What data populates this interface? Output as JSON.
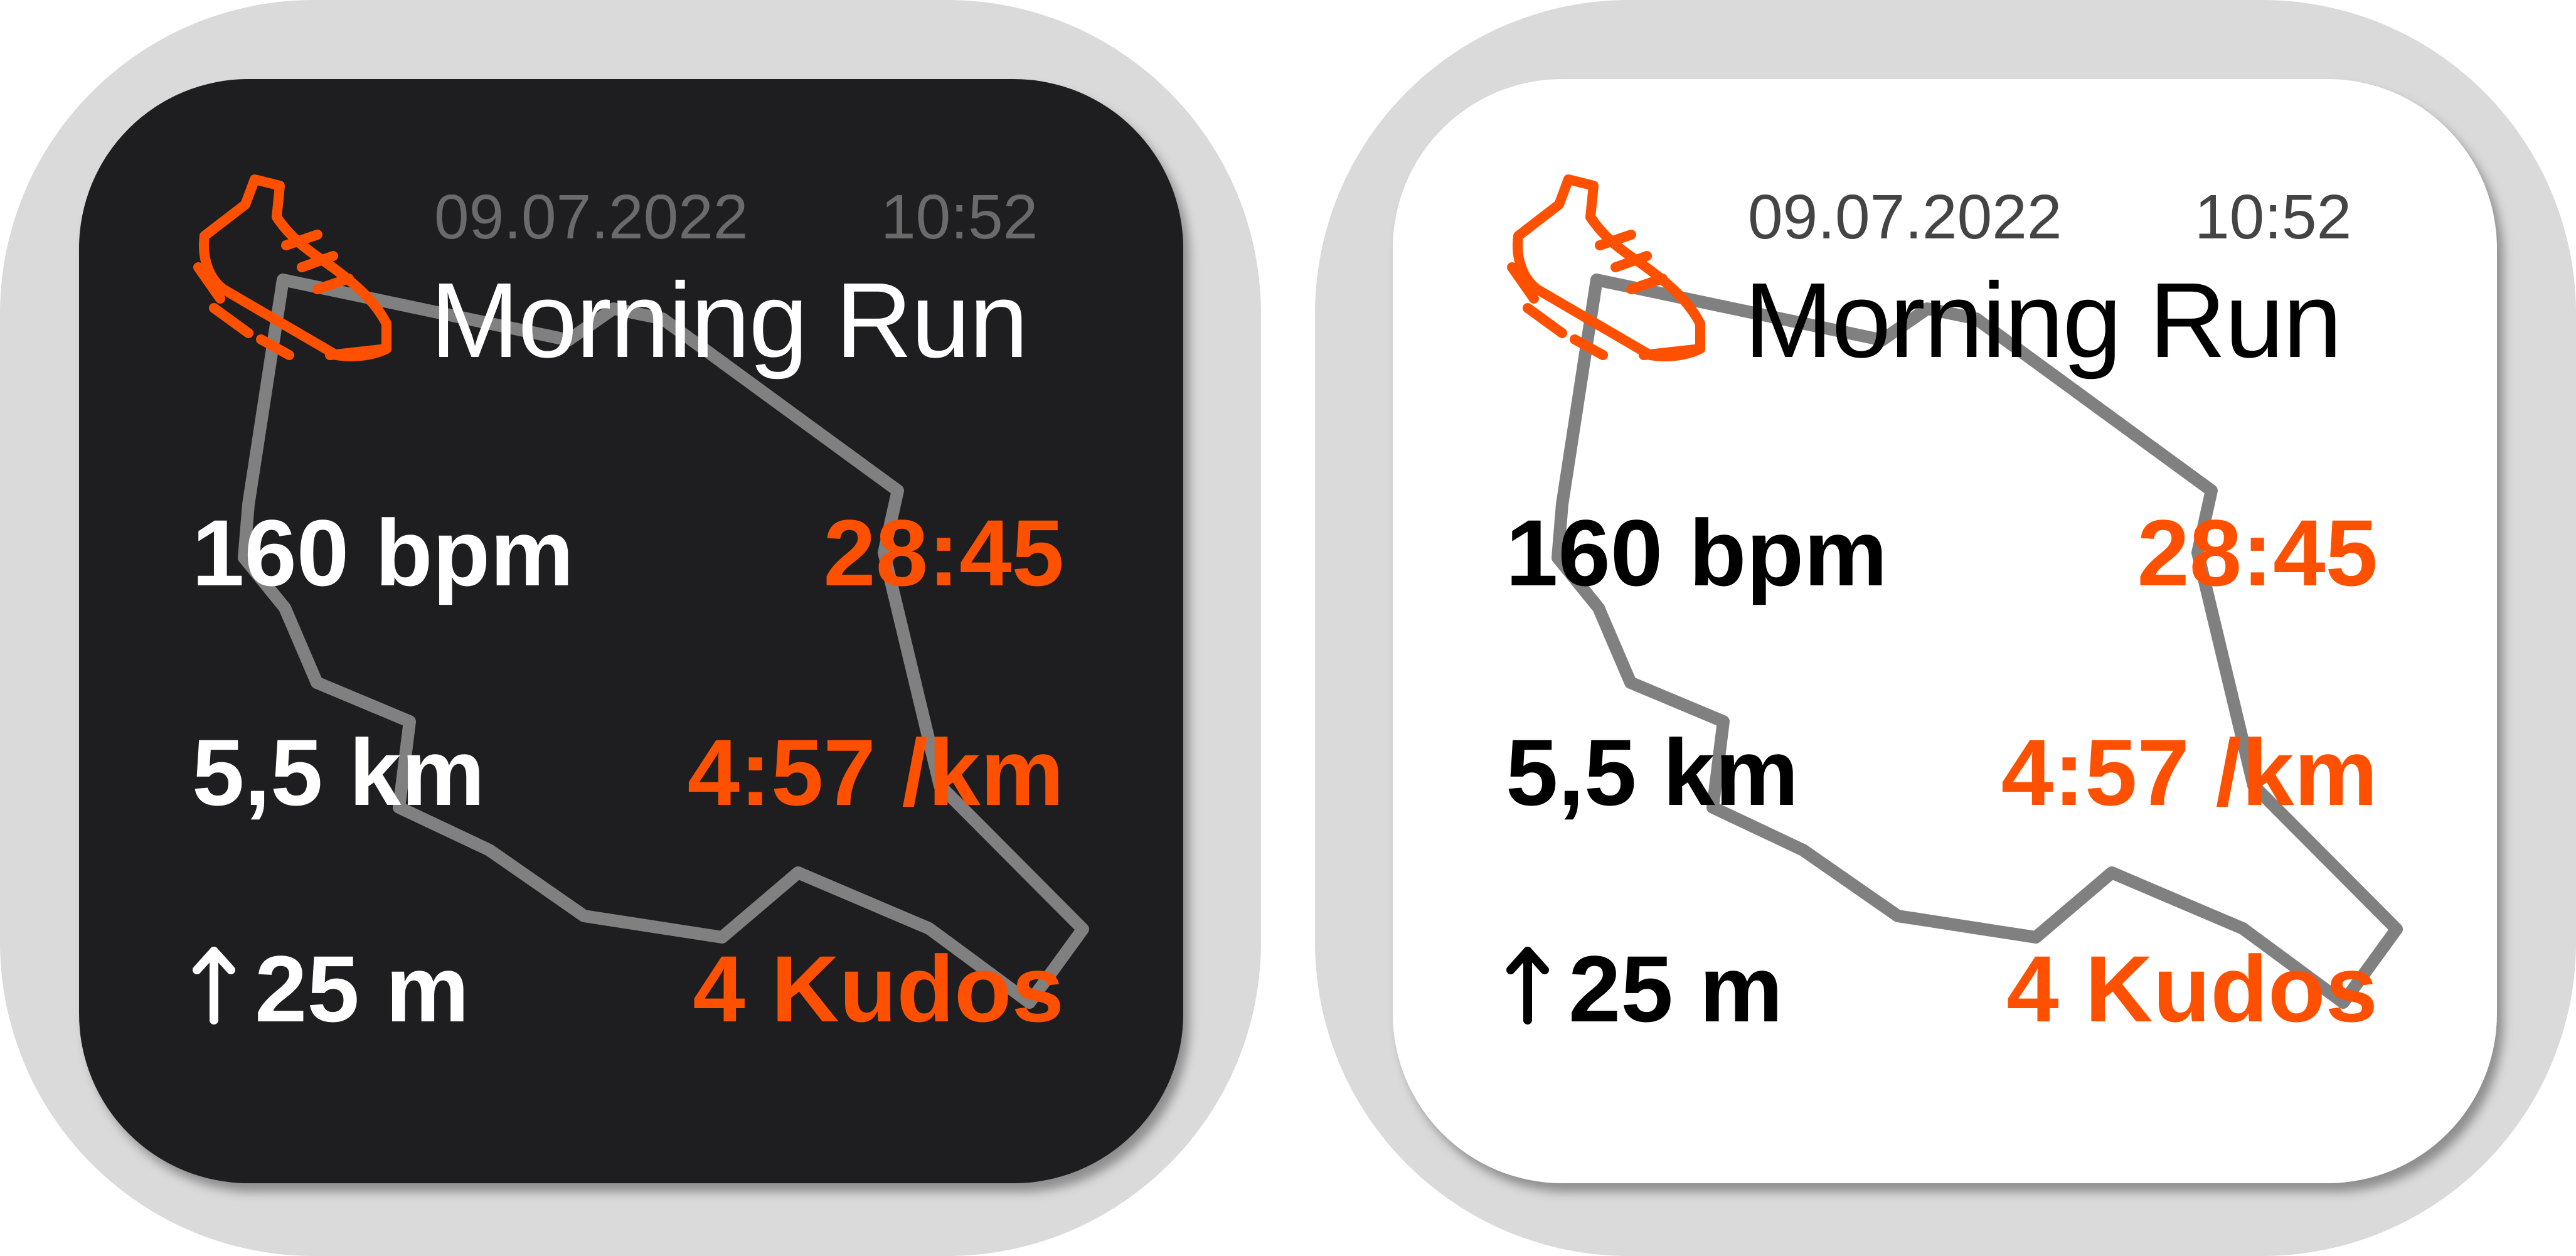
{
  "cards": [
    {
      "theme": "dark",
      "date": "09.07.2022",
      "time": "10:52",
      "title": "Morning Run",
      "heart_rate": "160 bpm",
      "duration": "28:45",
      "distance": "5,5 km",
      "pace": "4:57 /km",
      "elevation": "25 m",
      "kudos": "4 Kudos"
    },
    {
      "theme": "light",
      "date": "09.07.2022",
      "time": "10:52",
      "title": "Morning Run",
      "heart_rate": "160 bpm",
      "duration": "28:45",
      "distance": "5,5 km",
      "pace": "4:57 /km",
      "elevation": "25 m",
      "kudos": "4 Kudos"
    }
  ],
  "icons": {
    "activity": "running-shoe-icon",
    "elevation": "arrow-up-icon"
  },
  "colors": {
    "accent": "#ff5000",
    "route": "#808080",
    "dark_background": "#1e1e20",
    "light_background": "#ffffff",
    "bezel": "#dadada"
  }
}
